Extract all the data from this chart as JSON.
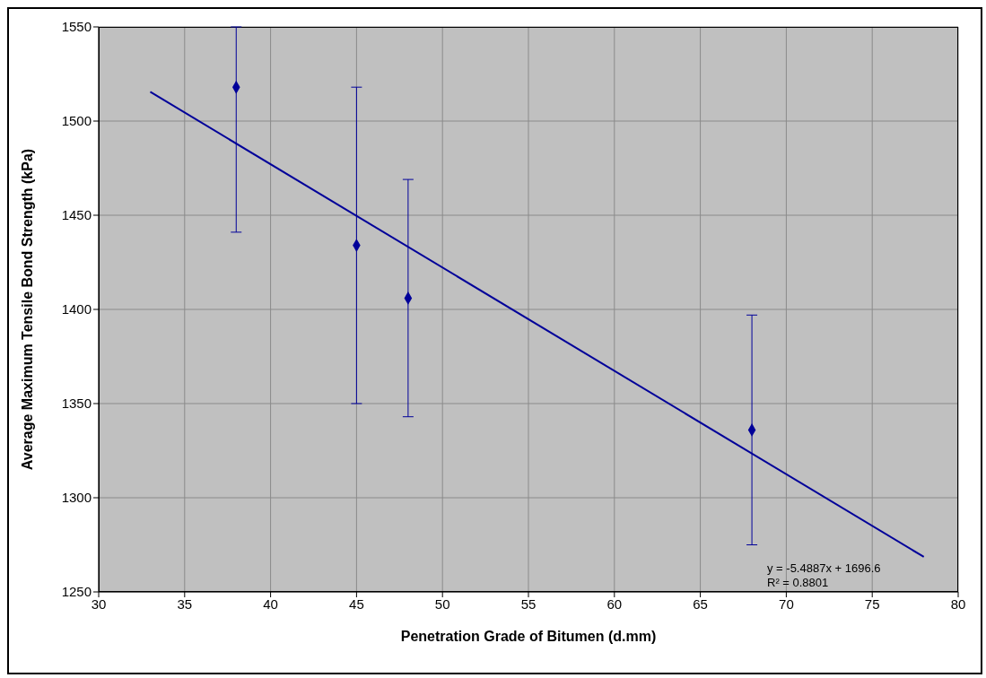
{
  "chart_data": {
    "type": "scatter",
    "xlabel": "Penetration Grade of Bitumen (d.mm)",
    "ylabel": "Average Maximum Tensile Bond Strength (kPa)",
    "x": [
      38,
      45,
      48,
      68
    ],
    "series": [
      {
        "color": "#000099",
        "values": [
          1518,
          1434,
          1406,
          1336
        ],
        "errors": [
          [
            1441,
            1550
          ],
          84,
          63,
          61
        ]
      },
      {
        "type": "line",
        "color": "#000099",
        "x": [
          33,
          78
        ],
        "values": [
          1515.5,
          1268.6
        ],
        "marker": "none"
      }
    ],
    "xlim": [
      30,
      80
    ],
    "xticks": [
      30,
      35,
      40,
      45,
      50,
      55,
      60,
      65,
      70,
      75,
      80
    ],
    "ylim": [
      1250,
      1550
    ],
    "yticks": [
      1250,
      1300,
      1350,
      1400,
      1450,
      1500,
      1550
    ],
    "grid": true,
    "marker": "diamond",
    "annotations": [
      "y = -5.4887x + 1696.6",
      "R² = 0.8801"
    ]
  }
}
